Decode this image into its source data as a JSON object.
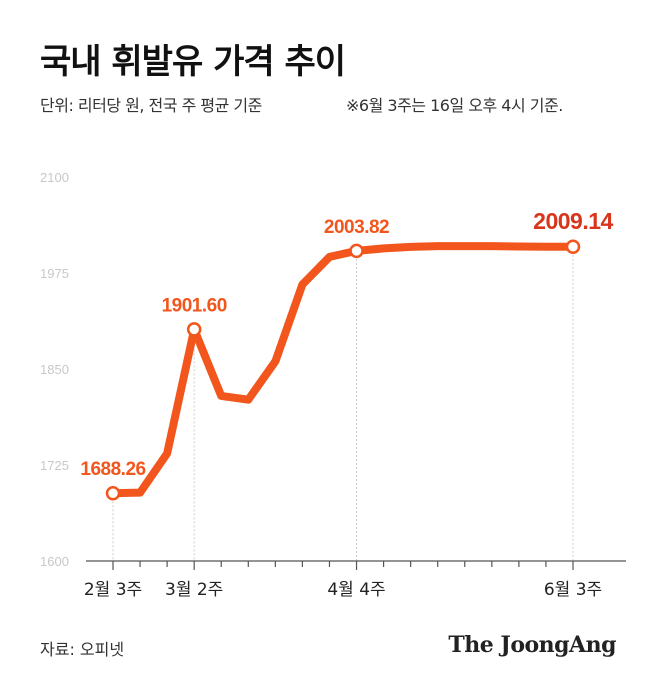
{
  "title": "국내 휘발유 가격 추이",
  "unit_note": "단위: 리터당 원, 전국 주 평균 기준",
  "time_note": "※6월 3주는 16일 오후 4시 기준.",
  "source": "자료: 오피넷",
  "brand": "The JoongAng",
  "colors": {
    "line": "#f2561d",
    "highlight": "#d9341c",
    "axis": "#555555",
    "grid": "#cccccc",
    "tick": "#c8c8c8"
  },
  "chart_data": {
    "type": "line",
    "title": "국내 휘발유 가격 추이",
    "ylim": [
      1600,
      2100
    ],
    "yticks": [
      1600,
      1725,
      1850,
      1975,
      2100
    ],
    "grid": false,
    "x_labels": [
      {
        "index": 0,
        "label": "2월 3주"
      },
      {
        "index": 3,
        "label": "3월 2주"
      },
      {
        "index": 9,
        "label": "4월 4주"
      },
      {
        "index": 17,
        "label": "6월 3주"
      }
    ],
    "values": [
      1688.26,
      1689,
      1740,
      1901.6,
      1815,
      1810,
      1860,
      1960,
      1996,
      2003.82,
      2007,
      2009,
      2010,
      2010,
      2010,
      2009.5,
      2009.3,
      2009.14
    ],
    "annotations": [
      {
        "index": 0,
        "label": "1688.26",
        "emphasis": false
      },
      {
        "index": 3,
        "label": "1901.60",
        "emphasis": false
      },
      {
        "index": 9,
        "label": "2003.82",
        "emphasis": false
      },
      {
        "index": 17,
        "label": "2009.14",
        "emphasis": true
      }
    ]
  }
}
